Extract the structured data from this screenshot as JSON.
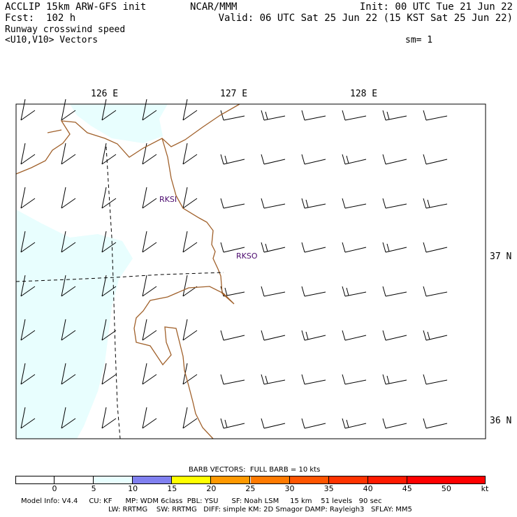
{
  "header": {
    "title": "ACCLIP 15km ARW-GFS init",
    "forecast_label": "Fcst:",
    "forecast_value": "102 h",
    "field_name": "Runway crosswind speed",
    "vectors": "<U10,V10> Vectors",
    "center": "NCAR/MMM",
    "init": "Init: 00 UTC Tue 21 Jun 22",
    "valid": "Valid: 06 UTC Sat 25 Jun 22 (15 KST Sat 25 Jun 22)",
    "smoothing": "sm= 1"
  },
  "axes": {
    "longitude_labels": [
      "126 E",
      "127 E",
      "128 E"
    ],
    "latitude_labels": [
      "37 N",
      "36 N"
    ]
  },
  "stations": [
    {
      "id": "RKSI"
    },
    {
      "id": "RKSO"
    }
  ],
  "colors": {
    "coastline": "#a0602a",
    "shade_low": "#e8fefe",
    "station_text": "#4b0a6e",
    "dashed_line": "#000000"
  },
  "colorbar": {
    "title": "BARB VECTORS:  FULL BARB = 10 kts",
    "unit": "kt",
    "ticks": [
      "0",
      "5",
      "10",
      "15",
      "20",
      "25",
      "30",
      "35",
      "40",
      "45",
      "50"
    ],
    "bins": [
      {
        "from": 0,
        "to": 15,
        "color": "#ffffff"
      },
      {
        "from": 15,
        "to": 20,
        "color": "#8080f0"
      },
      {
        "from": 20,
        "to": 25,
        "color": "#ffff00"
      },
      {
        "from": 25,
        "to": 30,
        "color": "#ff9900"
      },
      {
        "from": 30,
        "to": 35,
        "color": "#ff7a00"
      },
      {
        "from": 35,
        "to": 40,
        "color": "#ff5500"
      },
      {
        "from": 40,
        "to": 45,
        "color": "#ff3300"
      },
      {
        "from": 45,
        "to": 50,
        "color": "#ff1a00"
      },
      {
        "from": 50,
        "to": 55,
        "color": "#ff0000"
      }
    ],
    "first_white_bins": [
      {
        "from": 0,
        "to": 5,
        "color": "#ffffff"
      },
      {
        "from": 5,
        "to": 10,
        "color": "#ffffff"
      },
      {
        "from": 10,
        "to": 15,
        "color": "#e8fefe"
      }
    ]
  },
  "footer": {
    "line1": "Model Info: V4.4     CU: KF      MP: WDM 6class  PBL: YSU      SF: Noah LSM     15 km    51 levels   90 sec",
    "line2": "LW: RRTMG    SW: RRTMG   DIFF: simple KM: 2D Smagor DAMP: Rayleigh3   SFLAY: MM5"
  }
}
